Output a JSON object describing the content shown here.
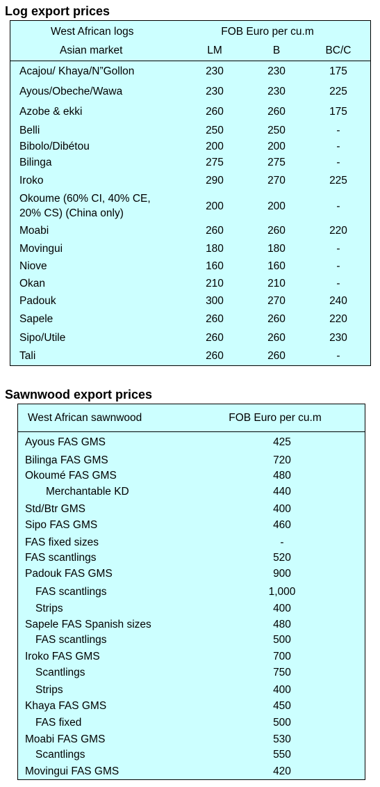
{
  "log_section": {
    "title": "Log export prices",
    "header": {
      "label_1": "West African logs",
      "label_2": "Asian market",
      "price_unit": "FOB Euro per cu.m",
      "grades": [
        "LM",
        "B",
        "BC/C"
      ]
    },
    "rows": [
      {
        "name": "Acajou/ Khaya/N”Gollon",
        "lm": "230",
        "b": "230",
        "bcc": "175"
      },
      {
        "name": "Ayous/Obeche/Wawa",
        "lm": "230",
        "b": "230",
        "bcc": "225"
      },
      {
        "name": "Azobe & ekki",
        "lm": "260",
        "b": "260",
        "bcc": "175"
      },
      {
        "name": "Belli",
        "lm": "250",
        "b": "250",
        "bcc": "-"
      },
      {
        "name": "Bibolo/Dibétou",
        "lm": "200",
        "b": "200",
        "bcc": "-"
      },
      {
        "name": "Bilinga",
        "lm": "275",
        "b": "275",
        "bcc": "-"
      },
      {
        "name": "Iroko",
        "lm": "290",
        "b": "270",
        "bcc": "225"
      },
      {
        "name": "Okoume (60% CI, 40% CE,",
        "name2": "20% CS) (China only)",
        "lm": "200",
        "b": "200",
        "bcc": "-"
      },
      {
        "name": "Moabi",
        "lm": "260",
        "b": "260",
        "bcc": "220"
      },
      {
        "name": "Movingui",
        "lm": "180",
        "b": "180",
        "bcc": "-"
      },
      {
        "name": "Niove",
        "lm": "160",
        "b": "160",
        "bcc": "-"
      },
      {
        "name": "Okan",
        "lm": "210",
        "b": "210",
        "bcc": "-"
      },
      {
        "name": "Padouk",
        "lm": "300",
        "b": "270",
        "bcc": "240"
      },
      {
        "name": "Sapele",
        "lm": "260",
        "b": "260",
        "bcc": "220"
      },
      {
        "name": "Sipo/Utile",
        "lm": "260",
        "b": "260",
        "bcc": "230"
      },
      {
        "name": "Tali",
        "lm": "260",
        "b": "260",
        "bcc": "-"
      }
    ]
  },
  "sawn_section": {
    "title": "Sawnwood export prices",
    "header": {
      "label": "West African sawnwood",
      "price_unit": "FOB Euro per cu.m"
    },
    "rows": [
      {
        "name": "Ayous FAS GMS",
        "price": "425"
      },
      {
        "name": "Bilinga FAS GMS",
        "price": "720"
      },
      {
        "name": "Okoumé FAS GMS",
        "price": "480"
      },
      {
        "name": "Merchantable KD",
        "price": "440"
      },
      {
        "name": "Std/Btr GMS",
        "price": "400"
      },
      {
        "name": "Sipo FAS GMS",
        "price": "460"
      },
      {
        "name": "FAS fixed sizes",
        "price": "-"
      },
      {
        "name": "FAS scantlings",
        "price": "520"
      },
      {
        "name": "Padouk FAS GMS",
        "price": "900"
      },
      {
        "name": "FAS scantlings",
        "price": "1,000"
      },
      {
        "name": "Strips",
        "price": "400"
      },
      {
        "name": "Sapele FAS Spanish sizes",
        "price": "480"
      },
      {
        "name": "FAS scantlings",
        "price": "500"
      },
      {
        "name": "Iroko FAS GMS",
        "price": "700"
      },
      {
        "name": "Scantlings",
        "price": "750"
      },
      {
        "name": "Strips",
        "price": "400"
      },
      {
        "name": "Khaya FAS GMS",
        "price": "450"
      },
      {
        "name": "FAS fixed",
        "price": "500"
      },
      {
        "name": "Moabi FAS GMS",
        "price": "530"
      },
      {
        "name": "Scantlings",
        "price": "550"
      },
      {
        "name": "Movingui FAS GMS",
        "price": "420"
      }
    ]
  }
}
